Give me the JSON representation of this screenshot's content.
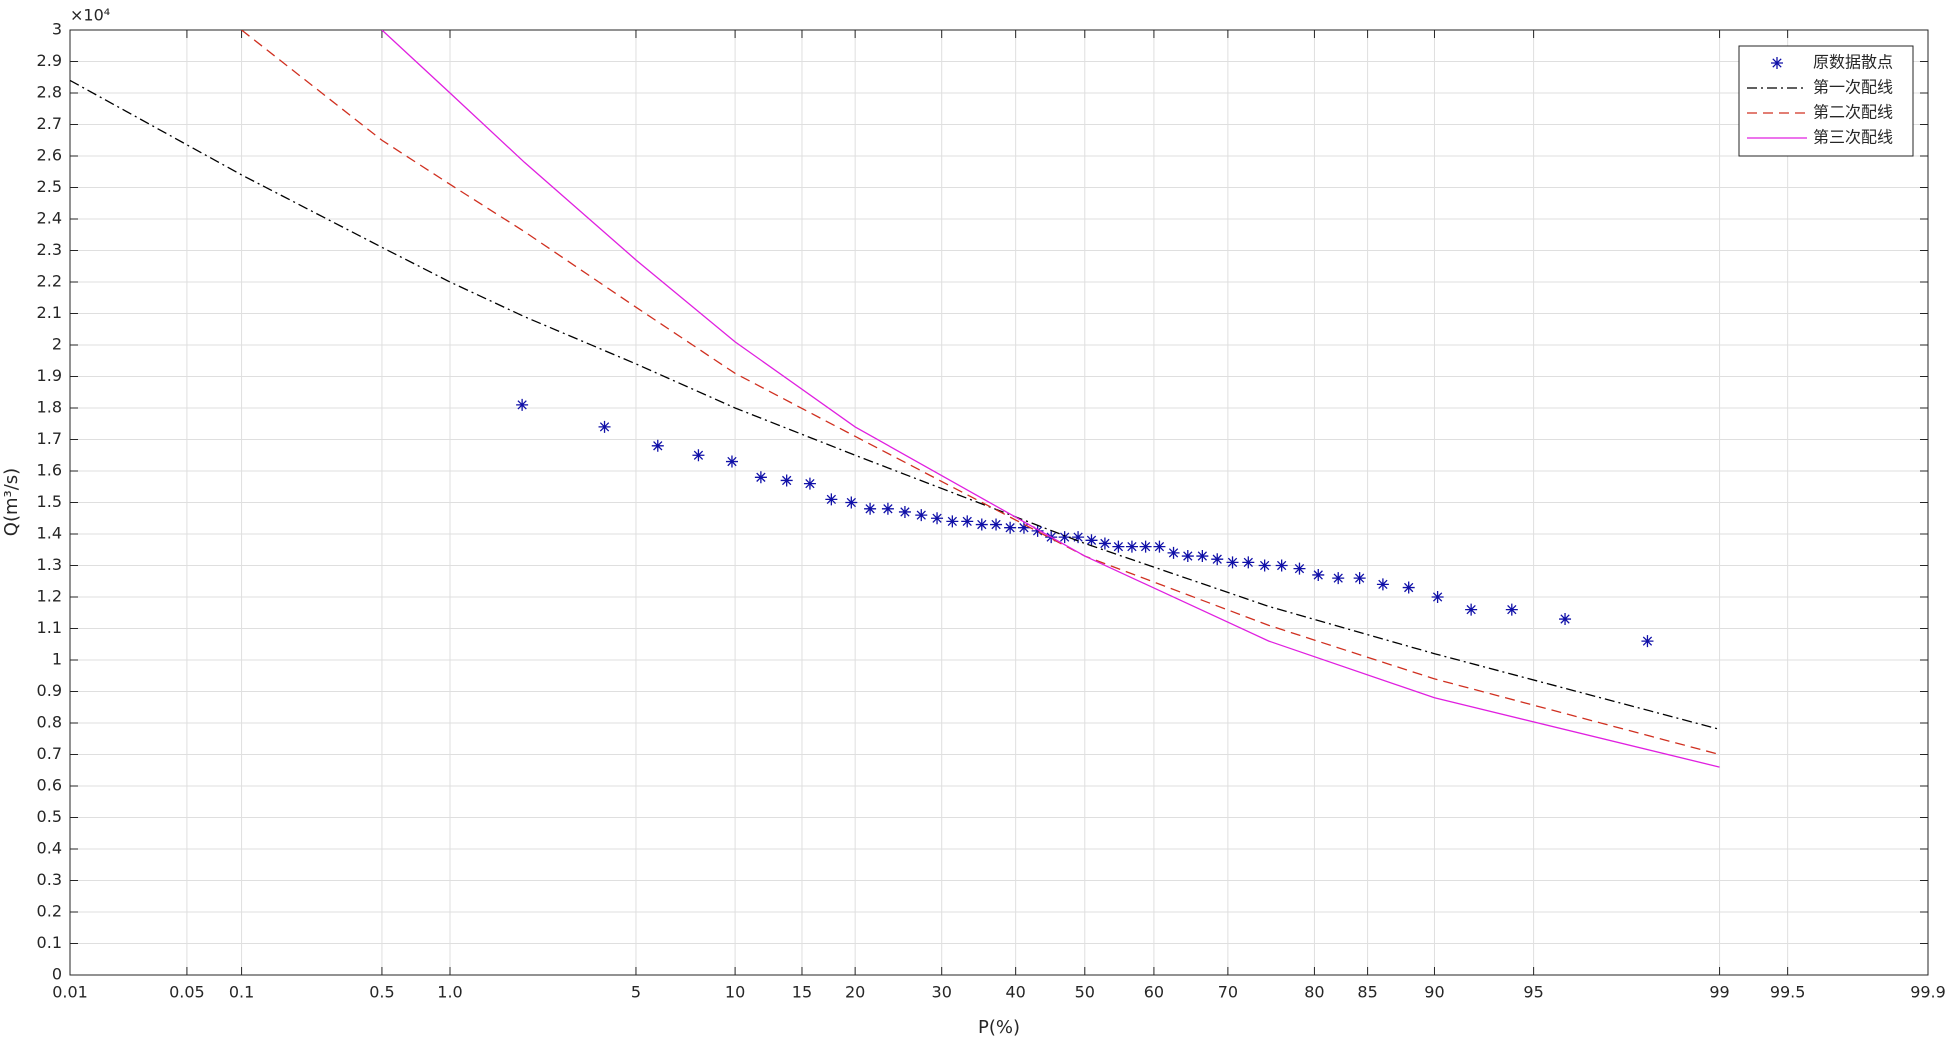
{
  "chart_data": {
    "type": "probability-line",
    "xlabel": "P(%)",
    "ylabel": "Q(m³/s)",
    "y_multiplier": "×10⁴",
    "xscale": "probability",
    "xlim": [
      0.01,
      99.9
    ],
    "xticks": [
      0.01,
      0.05,
      0.1,
      0.5,
      {
        "value": 1,
        "label": "1.0"
      },
      5,
      10,
      15,
      20,
      30,
      40,
      50,
      60,
      70,
      80,
      85,
      90,
      95,
      99,
      99.5,
      99.9
    ],
    "ylim": [
      0,
      3
    ],
    "yticks": [
      0,
      0.1,
      0.2,
      0.3,
      0.4,
      0.5,
      0.6,
      0.7,
      0.8,
      0.9,
      1,
      1.1,
      1.2,
      1.3,
      1.4,
      1.5,
      1.6,
      1.7,
      1.8,
      1.9,
      2,
      2.1,
      2.2,
      2.3,
      2.4,
      2.5,
      2.6,
      2.7,
      2.8,
      2.9,
      3
    ],
    "grid": true,
    "legend": "upper right",
    "series": [
      {
        "name": "原数据散点",
        "type": "scatter",
        "color": "#1010a8",
        "x": [
          1.96,
          3.92,
          5.88,
          7.84,
          9.8,
          11.76,
          13.73,
          15.69,
          17.65,
          19.61,
          21.57,
          23.53,
          25.49,
          27.45,
          29.41,
          31.37,
          33.33,
          35.29,
          37.25,
          39.22,
          41.18,
          43.14,
          45.1,
          47.06,
          49.02,
          50.98,
          52.94,
          54.9,
          56.86,
          58.82,
          60.78,
          62.75,
          64.71,
          66.67,
          68.63,
          70.59,
          72.55,
          74.51,
          76.47,
          78.43,
          80.39,
          82.35,
          84.31,
          86.27,
          88.24,
          90.2,
          92.16,
          94.12,
          96.08,
          98.04
        ],
        "values": [
          1.81,
          1.74,
          1.68,
          1.65,
          1.63,
          1.58,
          1.57,
          1.56,
          1.51,
          1.5,
          1.48,
          1.48,
          1.47,
          1.46,
          1.45,
          1.44,
          1.44,
          1.43,
          1.43,
          1.42,
          1.42,
          1.41,
          1.39,
          1.39,
          1.39,
          1.38,
          1.37,
          1.36,
          1.36,
          1.36,
          1.36,
          1.34,
          1.33,
          1.33,
          1.32,
          1.31,
          1.31,
          1.3,
          1.3,
          1.29,
          1.27,
          1.26,
          1.26,
          1.24,
          1.23,
          1.2,
          1.16,
          1.16,
          1.13,
          1.06
        ]
      },
      {
        "name": "第一次配线",
        "type": "line",
        "color": "#000000",
        "dash": "dashdot",
        "x": [
          0.01,
          0.1,
          0.5,
          1,
          2,
          5,
          10,
          20,
          50,
          75,
          90,
          99
        ],
        "values": [
          2.84,
          2.54,
          2.31,
          2.2,
          2.09,
          1.94,
          1.8,
          1.65,
          1.37,
          1.17,
          1.02,
          0.78
        ]
      },
      {
        "name": "第二次配线",
        "type": "line",
        "color": "#d03020",
        "dash": "dashed",
        "x": [
          0.1,
          0.5,
          1,
          2,
          5,
          10,
          20,
          50,
          75,
          90,
          99
        ],
        "values": [
          3.0,
          2.65,
          2.51,
          2.36,
          2.12,
          1.91,
          1.71,
          1.33,
          1.11,
          0.94,
          0.7
        ]
      },
      {
        "name": "第三次配线",
        "type": "line",
        "color": "#e020e0",
        "dash": "solid",
        "x": [
          0.5,
          1,
          2,
          5,
          10,
          20,
          50,
          75,
          90,
          99
        ],
        "values": [
          3.0,
          2.8,
          2.58,
          2.27,
          2.01,
          1.74,
          1.33,
          1.06,
          0.88,
          0.66
        ]
      }
    ]
  }
}
